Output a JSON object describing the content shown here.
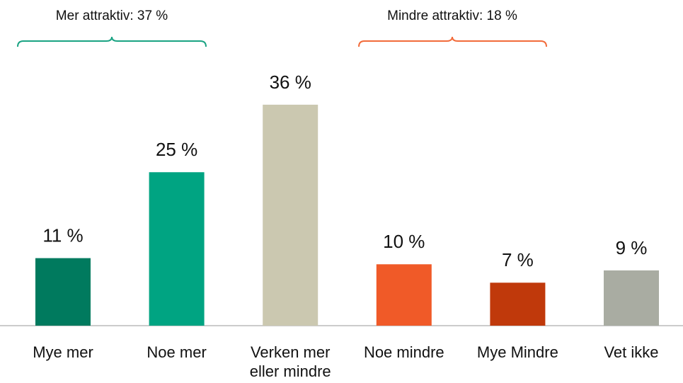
{
  "chart_data": {
    "type": "bar",
    "annotations": [
      {
        "text": "Mer attraktiv: 37 %",
        "color": "#1aa383"
      },
      {
        "text": "Mindre attraktiv: 18 %",
        "color": "#f26b3a"
      }
    ],
    "categories": [
      "Mye mer",
      "Noe mer",
      "Verken mer eller mindre",
      "Noe mindre",
      "Mye Mindre",
      "Vet ikke"
    ],
    "values": [
      11,
      25,
      36,
      10,
      7,
      9
    ],
    "value_labels": [
      "11 %",
      "25 %",
      "36 %",
      "10 %",
      "7 %",
      "9 %"
    ],
    "colors": [
      "#007a5e",
      "#00a482",
      "#cbc8b0",
      "#f05a28",
      "#c0390b",
      "#a9aca2"
    ]
  }
}
